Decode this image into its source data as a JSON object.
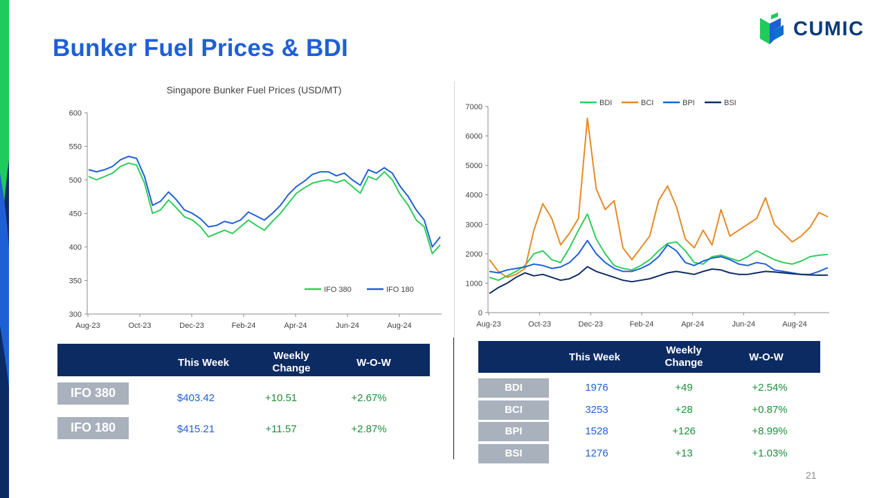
{
  "slide": {
    "title": "Bunker Fuel Prices & BDI",
    "page_number": "21"
  },
  "logo": {
    "text": "CUMIC"
  },
  "colors": {
    "title_blue": "#1f5fd6",
    "navy": "#0d2b63",
    "label_gray": "#a9b1bd",
    "green": "#2ecc5a",
    "blue": "#1f5fd6",
    "orange": "#e58a24",
    "dark_navy": "#0d2b63",
    "band_green": "#1ecb5b",
    "band_navy": "#0d2b63"
  },
  "chart_data": [
    {
      "type": "line",
      "title": "Singapore Bunker Fuel Prices (USD/MT)",
      "x_labels": [
        "Aug-23",
        "Oct-23",
        "Dec-23",
        "Feb-24",
        "Apr-24",
        "Jun-24",
        "Aug-24"
      ],
      "ylim": [
        300,
        600
      ],
      "y_ticks": [
        "300",
        "350",
        "400",
        "450",
        "500",
        "550",
        "600"
      ],
      "legend_position": "bottom-right",
      "grid": false,
      "series": [
        {
          "name": "IFO 380",
          "color": "#2ecc5a",
          "values": [
            505,
            500,
            505,
            510,
            520,
            525,
            522,
            495,
            450,
            455,
            470,
            458,
            445,
            440,
            430,
            415,
            420,
            425,
            420,
            430,
            440,
            432,
            425,
            438,
            450,
            465,
            480,
            488,
            495,
            498,
            500,
            496,
            500,
            490,
            480,
            505,
            500,
            512,
            500,
            478,
            462,
            440,
            430,
            390,
            403
          ]
        },
        {
          "name": "IFO 180",
          "color": "#1f5fd6",
          "values": [
            515,
            512,
            515,
            520,
            530,
            535,
            532,
            505,
            462,
            468,
            482,
            470,
            455,
            450,
            442,
            430,
            432,
            438,
            435,
            440,
            452,
            446,
            440,
            450,
            462,
            478,
            490,
            498,
            508,
            512,
            512,
            506,
            510,
            500,
            492,
            515,
            510,
            518,
            510,
            490,
            475,
            455,
            440,
            400,
            415
          ]
        }
      ]
    },
    {
      "type": "line",
      "x_labels": [
        "Aug-23",
        "Oct-23",
        "Dec-23",
        "Feb-24",
        "Apr-24",
        "Jun-24",
        "Aug-24"
      ],
      "ylim": [
        0,
        7000
      ],
      "y_ticks": [
        "0",
        "1000",
        "2000",
        "3000",
        "4000",
        "5000",
        "6000",
        "7000"
      ],
      "legend_position": "top",
      "grid": false,
      "series": [
        {
          "name": "BDI",
          "color": "#2ecc5a",
          "values": [
            1200,
            1100,
            1250,
            1400,
            1600,
            2000,
            2100,
            1800,
            1700,
            2200,
            2800,
            3350,
            2500,
            2000,
            1600,
            1500,
            1450,
            1600,
            1800,
            2100,
            2350,
            2400,
            2100,
            1700,
            1650,
            1900,
            1950,
            1850,
            1750,
            1900,
            2100,
            1950,
            1800,
            1700,
            1650,
            1750,
            1900,
            1950,
            1976
          ]
        },
        {
          "name": "BCI",
          "color": "#e58a24",
          "values": [
            1800,
            1400,
            1200,
            1300,
            1500,
            2800,
            3700,
            3200,
            2300,
            2700,
            3200,
            6600,
            4200,
            3500,
            3800,
            2200,
            1800,
            2200,
            2600,
            3800,
            4300,
            3600,
            2500,
            2200,
            2800,
            2300,
            3500,
            2600,
            2800,
            3000,
            3200,
            3900,
            3000,
            2700,
            2400,
            2600,
            2900,
            3400,
            3253
          ]
        },
        {
          "name": "BPI",
          "color": "#1f5fd6",
          "values": [
            1400,
            1350,
            1450,
            1500,
            1550,
            1650,
            1600,
            1500,
            1550,
            1700,
            2000,
            2450,
            2000,
            1700,
            1500,
            1400,
            1400,
            1500,
            1650,
            1900,
            2300,
            2100,
            1700,
            1600,
            1750,
            1850,
            1900,
            1800,
            1650,
            1600,
            1700,
            1650,
            1450,
            1400,
            1350,
            1300,
            1300,
            1400,
            1528
          ]
        },
        {
          "name": "BSI",
          "color": "#0d2b63",
          "values": [
            650,
            850,
            1000,
            1200,
            1350,
            1250,
            1300,
            1200,
            1100,
            1150,
            1300,
            1560,
            1400,
            1300,
            1200,
            1100,
            1050,
            1100,
            1150,
            1250,
            1350,
            1400,
            1350,
            1300,
            1400,
            1480,
            1450,
            1350,
            1300,
            1300,
            1350,
            1400,
            1380,
            1350,
            1320,
            1300,
            1280,
            1270,
            1276
          ]
        }
      ]
    }
  ],
  "fuel_table": {
    "headers": [
      "This Week",
      "Weekly Change",
      "W-O-W"
    ],
    "rows": [
      {
        "label": "IFO 380",
        "this_week": "$403.42",
        "weekly_change": "+10.51",
        "wow": "+2.67%"
      },
      {
        "label": "IFO 180",
        "this_week": "$415.21",
        "weekly_change": "+11.57",
        "wow": "+2.87%"
      }
    ]
  },
  "bdi_table": {
    "headers": [
      "This Week",
      "Weekly Change",
      "W-O-W"
    ],
    "rows": [
      {
        "label": "BDI",
        "this_week": "1976",
        "weekly_change": "+49",
        "wow": "+2.54%"
      },
      {
        "label": "BCI",
        "this_week": "3253",
        "weekly_change": "+28",
        "wow": "+0.87%"
      },
      {
        "label": "BPI",
        "this_week": "1528",
        "weekly_change": "+126",
        "wow": "+8.99%"
      },
      {
        "label": "BSI",
        "this_week": "1276",
        "weekly_change": "+13",
        "wow": "+1.03%"
      }
    ]
  }
}
